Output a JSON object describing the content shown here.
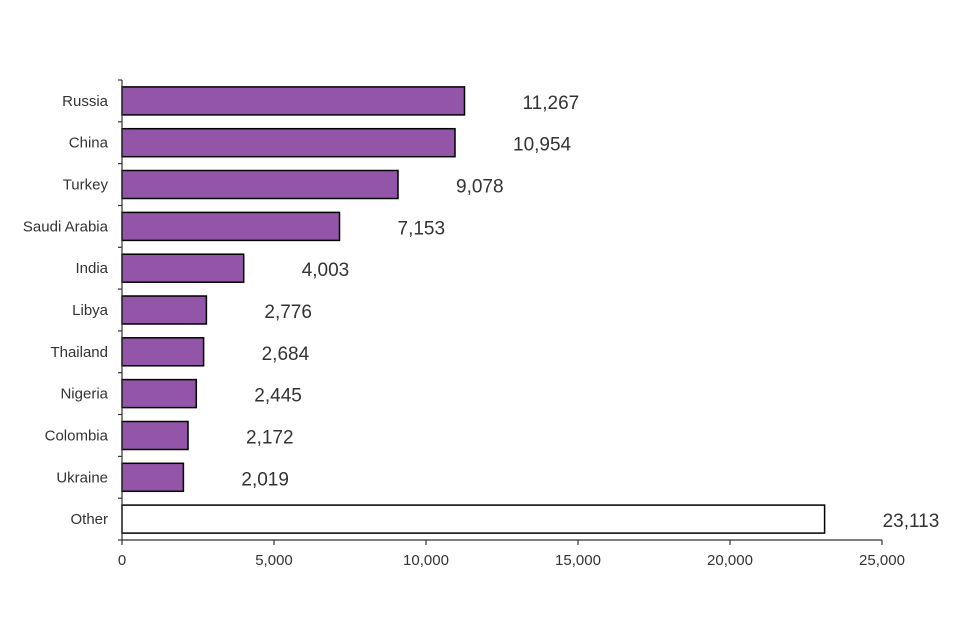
{
  "chart_data": {
    "type": "bar",
    "orientation": "horizontal",
    "title": "",
    "xlabel": "",
    "ylabel": "",
    "xlim": [
      0,
      25000
    ],
    "xticks": [
      0,
      5000,
      10000,
      15000,
      20000,
      25000
    ],
    "xtick_labels": [
      "0",
      "5,000",
      "10,000",
      "15,000",
      "20,000",
      "25,000"
    ],
    "categories": [
      "Russia",
      "China",
      "Turkey",
      "Saudi Arabia",
      "India",
      "Libya",
      "Thailand",
      "Nigeria",
      "Colombia",
      "Ukraine",
      "Other"
    ],
    "values": [
      11267,
      10954,
      9078,
      7153,
      4003,
      2776,
      2684,
      2445,
      2172,
      2019,
      23113
    ],
    "value_labels": [
      "11,267",
      "10,954",
      "9,078",
      "7,153",
      "4,003",
      "2,776",
      "2,684",
      "2,445",
      "2,172",
      "2,019",
      "23,113"
    ],
    "bar_colors": [
      "#9355a8",
      "#9355a8",
      "#9355a8",
      "#9355a8",
      "#9355a8",
      "#9355a8",
      "#9355a8",
      "#9355a8",
      "#9355a8",
      "#9355a8",
      "#ffffff"
    ],
    "grid": false,
    "legend": "none"
  }
}
